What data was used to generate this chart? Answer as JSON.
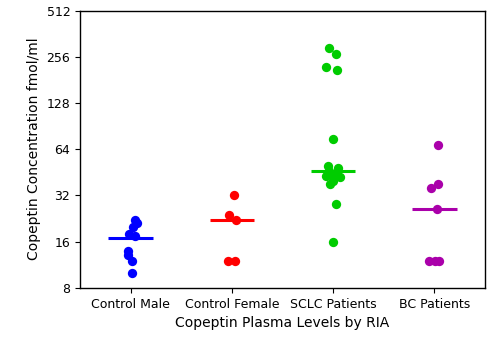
{
  "groups": [
    "Control Male",
    "Control Female",
    "SCLC Patients",
    "BC Patients"
  ],
  "group_colors": [
    "#0000FF",
    "#FF0000",
    "#00CC00",
    "#AA00AA"
  ],
  "x_positions": [
    1,
    2,
    3,
    4
  ],
  "data_points": {
    "Control Male": [
      22,
      21,
      20,
      18,
      17.5,
      14,
      13,
      12,
      10
    ],
    "Control Female": [
      32,
      24,
      22,
      12,
      12
    ],
    "SCLC Patients": [
      290,
      265,
      220,
      210,
      75,
      50,
      48,
      46,
      44,
      43,
      43,
      42,
      40,
      38,
      28,
      16
    ],
    "BC Patients": [
      68,
      38,
      36,
      26,
      12,
      12,
      12
    ]
  },
  "means": {
    "Control Male": 17.0,
    "Control Female": 22.0,
    "SCLC Patients": 46.0,
    "BC Patients": 26.0
  },
  "mean_bar_width": 0.22,
  "ylabel": "Copeptin Concentration fmol/ml",
  "xlabel": "Copeptin Plasma Levels by RIA",
  "ylim_log": [
    8,
    512
  ],
  "yticks": [
    8,
    16,
    32,
    64,
    128,
    256,
    512
  ],
  "dot_size": 45,
  "background_color": "#FFFFFF",
  "spine_color": "#000000",
  "tick_color": "#000000",
  "label_fontsize": 10,
  "tick_fontsize": 9
}
